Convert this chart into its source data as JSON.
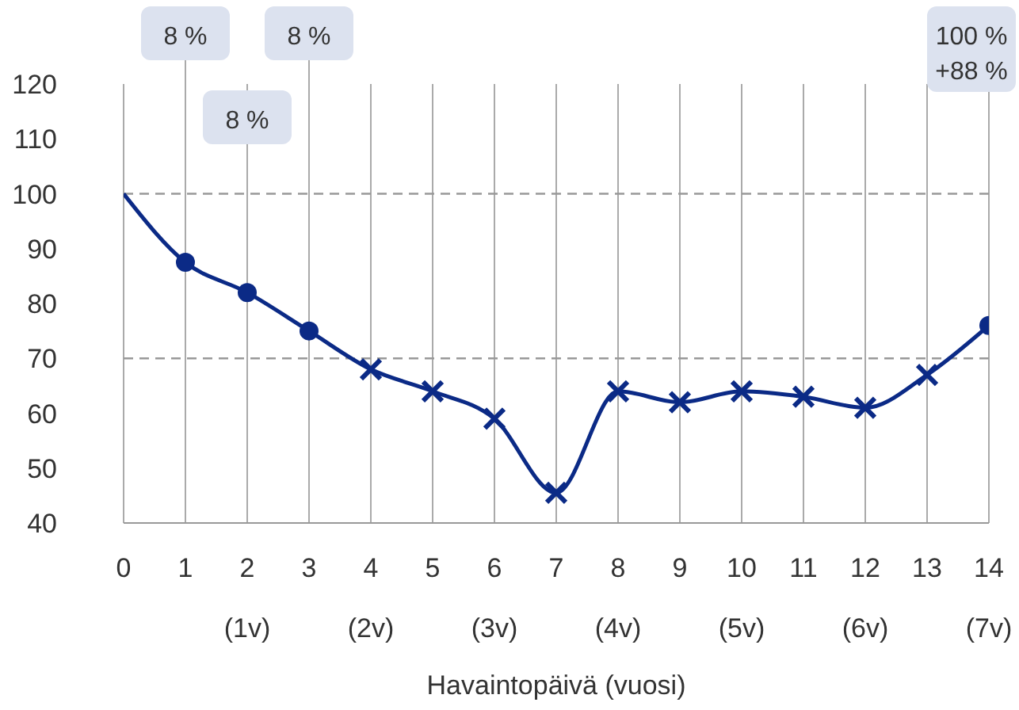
{
  "chart_data": {
    "type": "line",
    "xlabel": "Havaintopäivä (vuosi)",
    "xlim": [
      0,
      14
    ],
    "xticks": [
      0,
      1,
      {
        "value": 2,
        "label": "2\n(1v)"
      },
      3,
      {
        "value": 4,
        "label": "4\n(2v)"
      },
      5,
      {
        "value": 6,
        "label": "6\n(3v)"
      },
      7,
      {
        "value": 8,
        "label": "8\n(4v)"
      },
      9,
      {
        "value": 10,
        "label": "10\n(5v)"
      },
      11,
      {
        "value": 12,
        "label": "12\n(6v)"
      },
      13,
      {
        "value": 14,
        "label": "14\n(7v)"
      }
    ],
    "ylim": [
      40,
      120
    ],
    "yticks": [
      40,
      50,
      60,
      70,
      80,
      90,
      100,
      110,
      120
    ],
    "grid": "x",
    "legend": false,
    "series": [
      {
        "color": "#0b2a86",
        "marker": "none",
        "line_style": "solid",
        "x": [
          0,
          1,
          2,
          3,
          4,
          5,
          6,
          7,
          8,
          9,
          10,
          11,
          12,
          13,
          14
        ],
        "values": [
          100,
          87.5,
          82,
          75,
          68,
          64,
          59,
          45.5,
          64,
          62,
          64,
          63,
          61,
          67,
          76
        ]
      },
      {
        "type": "scatter",
        "color": "#0b2a86",
        "marker": "circle",
        "x": [
          1,
          2,
          3,
          14
        ],
        "values": [
          87.5,
          82,
          75,
          76
        ]
      },
      {
        "type": "scatter",
        "color": "#0b2a86",
        "marker": "cross",
        "x": [
          4,
          5,
          6,
          7,
          8,
          9,
          10,
          11,
          12,
          13
        ],
        "values": [
          68,
          64,
          59,
          45.5,
          64,
          62,
          64,
          63,
          61,
          67
        ]
      }
    ],
    "ref_lines": [
      {
        "axis": "y",
        "value": 100,
        "color": "#999999",
        "line_style": "dashed"
      },
      {
        "axis": "y",
        "value": 70,
        "color": "#999999",
        "line_style": "dashed"
      }
    ],
    "annotations": [
      "8 %",
      "8 %",
      "8 %",
      "100 %\n+88 %"
    ]
  }
}
